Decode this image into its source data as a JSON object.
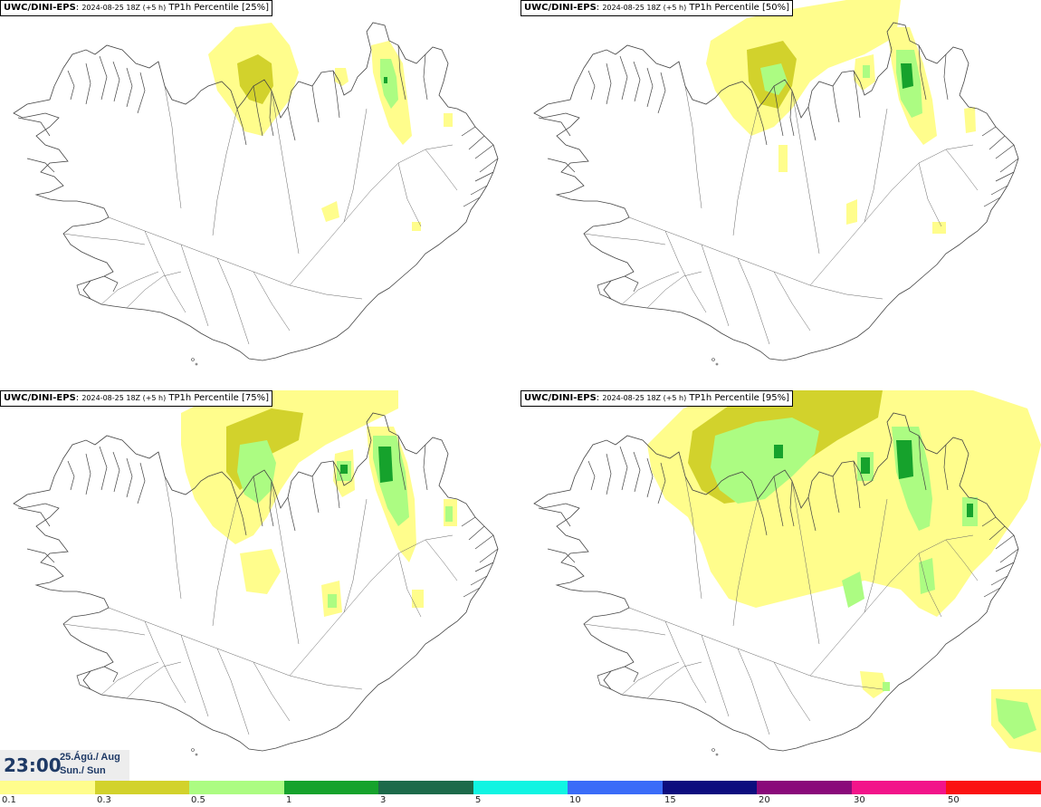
{
  "panels": [
    {
      "source": "UWC/DINI-EPS",
      "date": "2024-08-25 18Z (+5 h)",
      "variable": "TP1h Percentile [25%]"
    },
    {
      "source": "UWC/DINI-EPS",
      "date": "2024-08-25 18Z (+5 h)",
      "variable": "TP1h Percentile [50%]"
    },
    {
      "source": "UWC/DINI-EPS",
      "date": "2024-08-25 18Z (+5 h)",
      "variable": "TP1h Percentile [75%]"
    },
    {
      "source": "UWC/DINI-EPS",
      "date": "2024-08-25 18Z (+5 h)",
      "variable": "TP1h Percentile [95%]"
    }
  ],
  "time_box": {
    "time": "23:00",
    "date_line1": "25.Ágú./ Aug",
    "date_line2": "Sun./ Sun"
  },
  "legend": {
    "ticks": [
      "0.1",
      "0.3",
      "0.5",
      "1",
      "3",
      "5",
      "10",
      "15",
      "20",
      "30",
      "50"
    ],
    "colors": [
      "#fffd8c",
      "#d2d22c",
      "#acfc82",
      "#16a22c",
      "#1d6a4a",
      "#10f4e2",
      "#3a6cf8",
      "#0d0d7e",
      "#8a0a7a",
      "#f2148a",
      "#fb1212"
    ]
  }
}
